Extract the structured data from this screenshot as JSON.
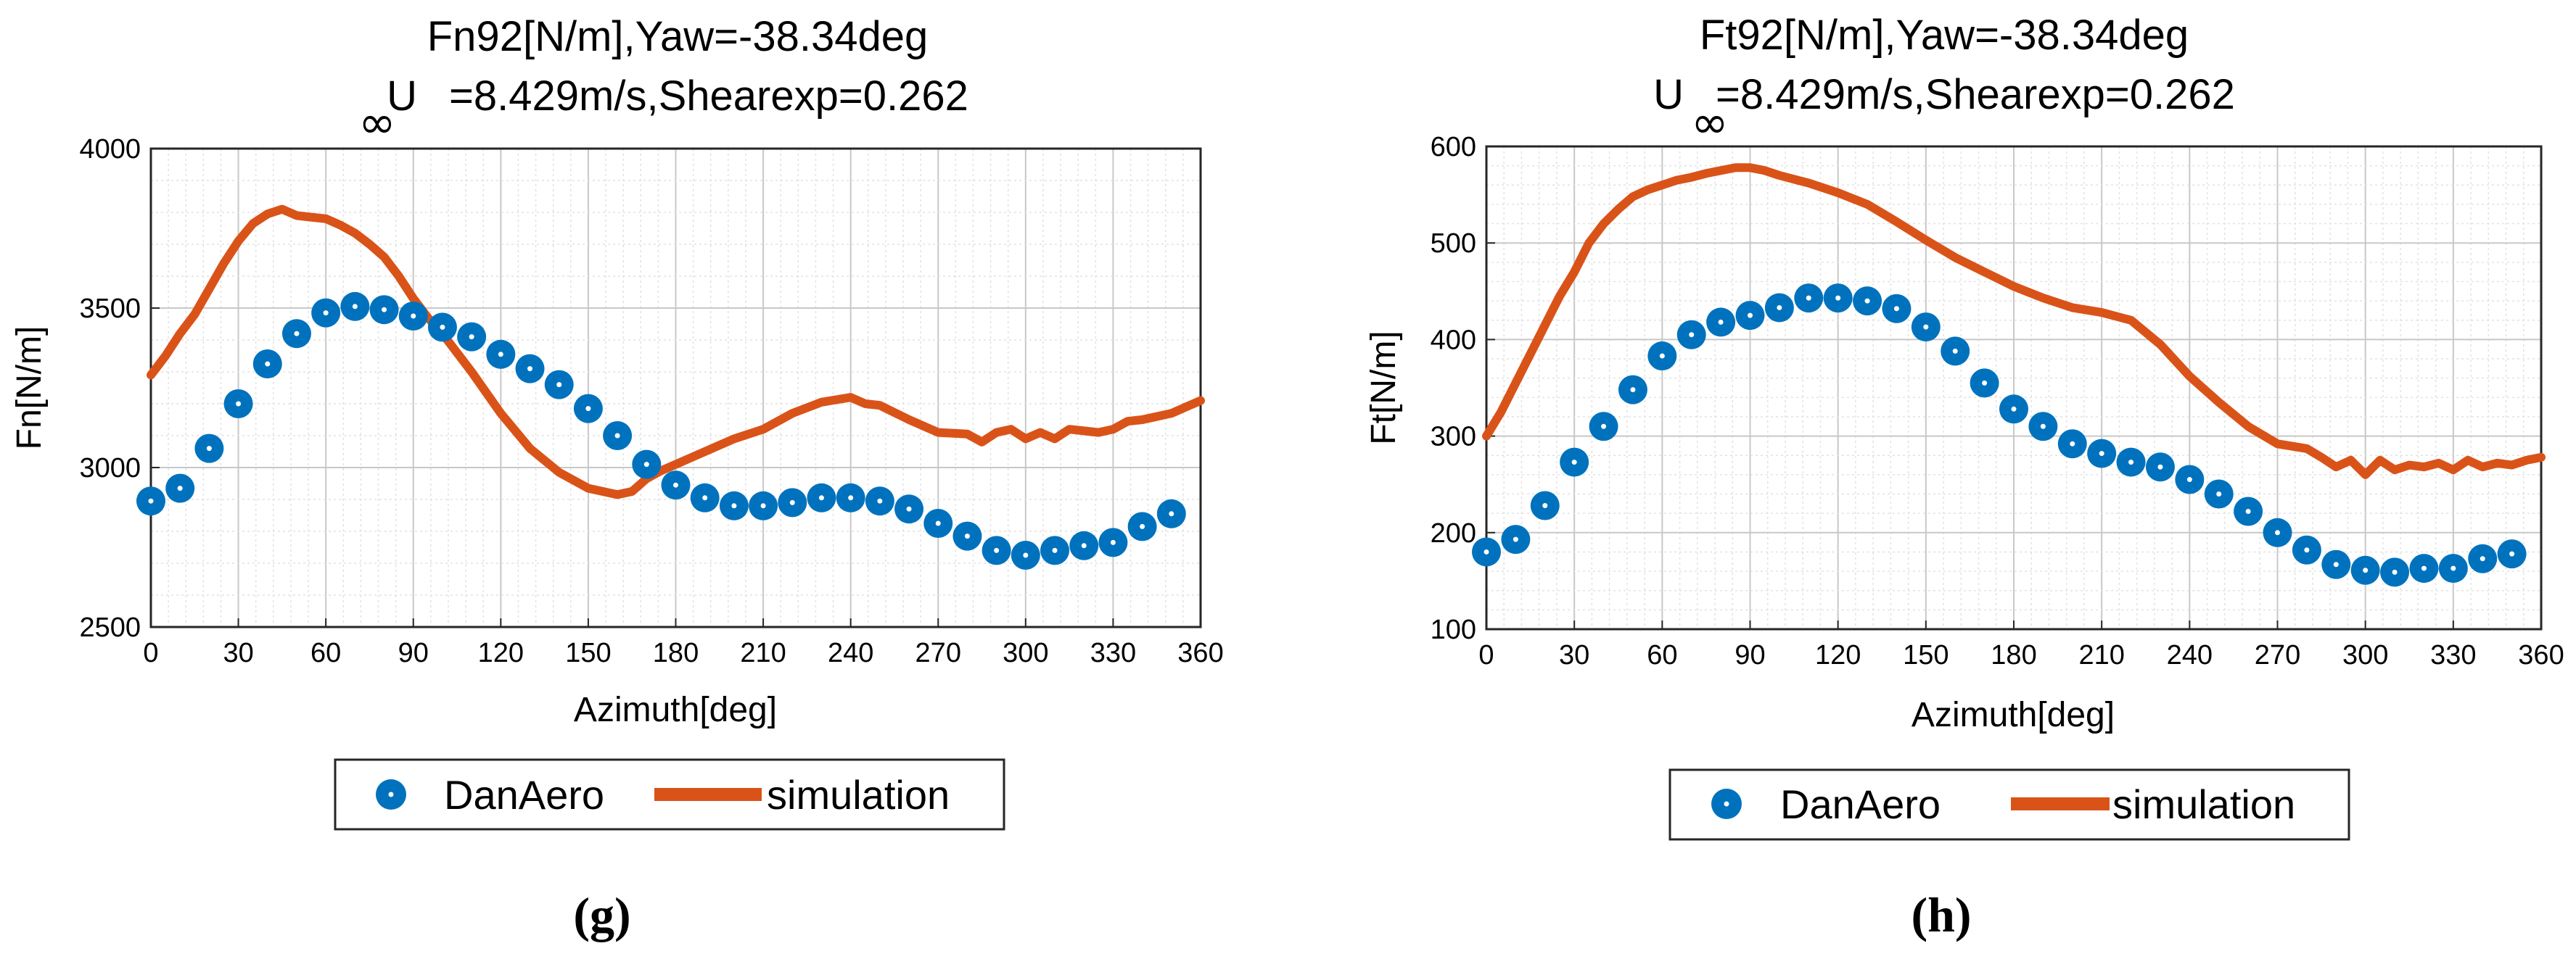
{
  "chart_data": [
    {
      "id": "g",
      "type": "line",
      "caption": "(g)",
      "title_line1": "Fn92[N/m],Yaw=-38.34deg",
      "title_line2_prefix": "U",
      "title_subscript": "∞",
      "title_line2_rest": "=8.429m/s,Shearexp=0.262",
      "xlabel": "Azimuth[deg]",
      "ylabel": "Fn[N/m]",
      "xlim": [
        0,
        360
      ],
      "ylim": [
        2500,
        4000
      ],
      "xticks": [
        0,
        30,
        60,
        90,
        120,
        150,
        180,
        210,
        240,
        270,
        300,
        330,
        360
      ],
      "yticks": [
        2500,
        3000,
        3500,
        4000
      ],
      "grid": true,
      "legend_position": "below",
      "series": [
        {
          "name": "DanAero",
          "style": "markers",
          "color": "#0072BD",
          "x": [
            0,
            10,
            20,
            30,
            40,
            50,
            60,
            70,
            80,
            90,
            100,
            110,
            120,
            130,
            140,
            150,
            160,
            170,
            180,
            190,
            200,
            210,
            220,
            230,
            240,
            250,
            260,
            270,
            280,
            290,
            300,
            310,
            320,
            330,
            340,
            350
          ],
          "y": [
            2895,
            2935,
            3060,
            3200,
            3325,
            3420,
            3485,
            3505,
            3495,
            3475,
            3440,
            3410,
            3355,
            3310,
            3260,
            3185,
            3100,
            3010,
            2945,
            2905,
            2880,
            2880,
            2890,
            2905,
            2905,
            2895,
            2870,
            2825,
            2785,
            2740,
            2725,
            2740,
            2755,
            2765,
            2815,
            2855
          ]
        },
        {
          "name": "simulation",
          "style": "line",
          "color": "#D95319",
          "x": [
            0,
            5,
            10,
            15,
            20,
            25,
            30,
            35,
            40,
            45,
            50,
            55,
            60,
            65,
            70,
            75,
            80,
            85,
            90,
            95,
            100,
            110,
            120,
            130,
            140,
            150,
            160,
            165,
            170,
            175,
            180,
            190,
            200,
            210,
            220,
            230,
            240,
            245,
            250,
            260,
            270,
            280,
            285,
            290,
            295,
            300,
            305,
            310,
            315,
            320,
            325,
            330,
            335,
            340,
            345,
            350,
            355,
            360
          ],
          "y": [
            3290,
            3350,
            3420,
            3480,
            3560,
            3640,
            3710,
            3765,
            3795,
            3810,
            3790,
            3785,
            3780,
            3760,
            3735,
            3700,
            3660,
            3600,
            3530,
            3470,
            3420,
            3300,
            3170,
            3060,
            2985,
            2935,
            2915,
            2925,
            2965,
            2990,
            3010,
            3050,
            3090,
            3120,
            3170,
            3205,
            3220,
            3200,
            3195,
            3150,
            3110,
            3105,
            3080,
            3110,
            3120,
            3090,
            3110,
            3090,
            3120,
            3115,
            3110,
            3120,
            3145,
            3150,
            3160,
            3170,
            3190,
            3210
          ]
        }
      ]
    },
    {
      "id": "h",
      "type": "line",
      "caption": "(h)",
      "title_line1": "Ft92[N/m],Yaw=-38.34deg",
      "title_line2_prefix": "U",
      "title_subscript": "∞",
      "title_line2_rest": "=8.429m/s,Shearexp=0.262",
      "xlabel": "Azimuth[deg]",
      "ylabel": "Ft[N/m]",
      "xlim": [
        0,
        360
      ],
      "ylim": [
        100,
        600
      ],
      "xticks": [
        0,
        30,
        60,
        90,
        120,
        150,
        180,
        210,
        240,
        270,
        300,
        330,
        360
      ],
      "yticks": [
        100,
        200,
        300,
        400,
        500,
        600
      ],
      "grid": true,
      "legend_position": "below",
      "series": [
        {
          "name": "DanAero",
          "style": "markers",
          "color": "#0072BD",
          "x": [
            0,
            10,
            20,
            30,
            40,
            50,
            60,
            70,
            80,
            90,
            100,
            110,
            120,
            130,
            140,
            150,
            160,
            170,
            180,
            190,
            200,
            210,
            220,
            230,
            240,
            250,
            260,
            270,
            280,
            290,
            300,
            310,
            320,
            330,
            340,
            350
          ],
          "y": [
            180,
            193,
            228,
            273,
            310,
            348,
            383,
            405,
            418,
            425,
            433,
            443,
            443,
            440,
            432,
            413,
            388,
            355,
            328,
            310,
            292,
            282,
            273,
            268,
            255,
            240,
            222,
            200,
            182,
            167,
            161,
            159,
            163,
            163,
            173,
            178
          ]
        },
        {
          "name": "simulation",
          "style": "line",
          "color": "#D95319",
          "x": [
            0,
            5,
            10,
            15,
            20,
            25,
            30,
            35,
            40,
            45,
            50,
            55,
            60,
            65,
            70,
            75,
            80,
            85,
            90,
            95,
            100,
            110,
            120,
            130,
            140,
            150,
            160,
            170,
            180,
            190,
            200,
            210,
            220,
            230,
            240,
            250,
            260,
            270,
            280,
            285,
            290,
            295,
            300,
            305,
            310,
            315,
            320,
            325,
            330,
            335,
            340,
            345,
            350,
            355,
            360
          ],
          "y": [
            300,
            325,
            355,
            385,
            415,
            445,
            470,
            500,
            520,
            535,
            548,
            555,
            560,
            565,
            568,
            572,
            575,
            578,
            578,
            575,
            570,
            562,
            552,
            540,
            522,
            503,
            485,
            470,
            455,
            443,
            433,
            428,
            420,
            395,
            362,
            335,
            310,
            292,
            287,
            278,
            268,
            275,
            260,
            275,
            265,
            270,
            268,
            272,
            265,
            275,
            268,
            272,
            270,
            275,
            278
          ]
        }
      ]
    }
  ]
}
